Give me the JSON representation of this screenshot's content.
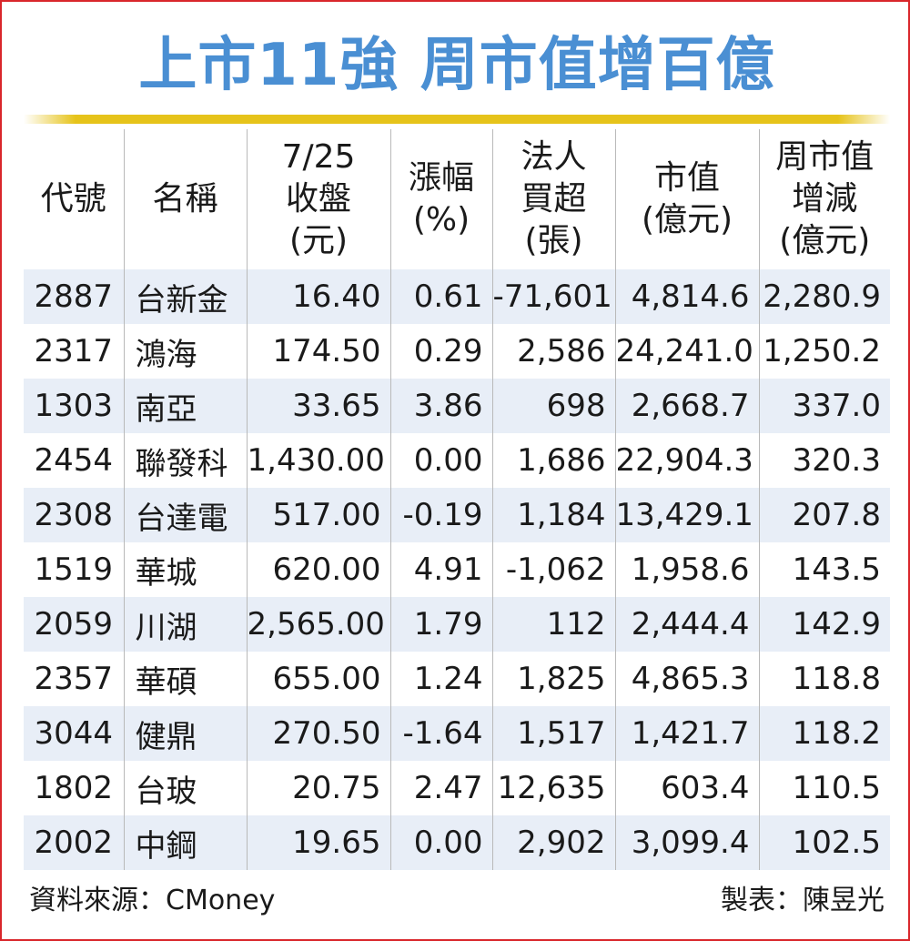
{
  "title": "上市11強 周市值增百億",
  "headers": [
    [
      "代號"
    ],
    [
      "名稱"
    ],
    [
      "7/25",
      "收盤",
      "(元)"
    ],
    [
      "漲幅",
      "(%)"
    ],
    [
      "法人",
      "買超",
      "(張)"
    ],
    [
      "市值",
      "(億元)"
    ],
    [
      "周市值",
      "增減",
      "(億元)"
    ]
  ],
  "rows": [
    [
      "2887",
      "台新金",
      "16.40",
      "0.61",
      "-71,601",
      "4,814.6",
      "2,280.9"
    ],
    [
      "2317",
      "鴻海",
      "174.50",
      "0.29",
      "2,586",
      "24,241.0",
      "1,250.2"
    ],
    [
      "1303",
      "南亞",
      "33.65",
      "3.86",
      "698",
      "2,668.7",
      "337.0"
    ],
    [
      "2454",
      "聯發科",
      "1,430.00",
      "0.00",
      "1,686",
      "22,904.3",
      "320.3"
    ],
    [
      "2308",
      "台達電",
      "517.00",
      "-0.19",
      "1,184",
      "13,429.1",
      "207.8"
    ],
    [
      "1519",
      "華城",
      "620.00",
      "4.91",
      "-1,062",
      "1,958.6",
      "143.5"
    ],
    [
      "2059",
      "川湖",
      "2,565.00",
      "1.79",
      "112",
      "2,444.4",
      "142.9"
    ],
    [
      "2357",
      "華碩",
      "655.00",
      "1.24",
      "1,825",
      "4,865.3",
      "118.8"
    ],
    [
      "3044",
      "健鼎",
      "270.50",
      "-1.64",
      "1,517",
      "1,421.7",
      "118.2"
    ],
    [
      "1802",
      "台玻",
      "20.75",
      "2.47",
      "12,635",
      "603.4",
      "110.5"
    ],
    [
      "2002",
      "中鋼",
      "19.65",
      "0.00",
      "2,902",
      "3,099.4",
      "102.5"
    ]
  ],
  "footer": {
    "source": "資料來源：CMoney",
    "author": "製表：陳昱光"
  },
  "colors": {
    "title": "#4a8fd3",
    "rule": "#e6c31a",
    "frame": "#d9262b",
    "stripe": "#e8eef7"
  }
}
